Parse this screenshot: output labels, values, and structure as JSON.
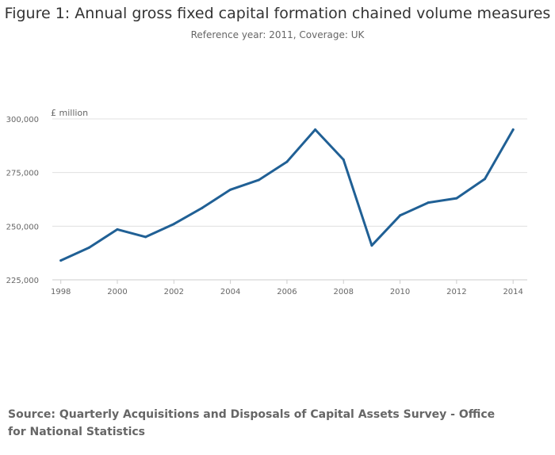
{
  "chart_data": {
    "type": "line",
    "title": "Figure 1: Annual gross fixed capital formation chained volume measures",
    "subtitle": "Reference year: 2011, Coverage: UK",
    "unit_label": "£ million",
    "xlabel": "",
    "ylabel": "£ million",
    "ylim": [
      225000,
      300000
    ],
    "xlim": [
      1997.7,
      2014.5
    ],
    "y_ticks": [
      225000,
      250000,
      275000,
      300000
    ],
    "y_tick_labels": [
      "225,000",
      "250,000",
      "275,000",
      "300,000"
    ],
    "x_ticks": [
      1998,
      2000,
      2002,
      2004,
      2006,
      2008,
      2010,
      2012,
      2014
    ],
    "x_tick_labels": [
      "1998",
      "2000",
      "2002",
      "2004",
      "2006",
      "2008",
      "2010",
      "2012",
      "2014"
    ],
    "grid": true,
    "series": [
      {
        "name": "Gross fixed capital formation",
        "color": "#206095",
        "x": [
          1998,
          1999,
          2000,
          2001,
          2002,
          2003,
          2004,
          2005,
          2006,
          2007,
          2008,
          2009,
          2010,
          2011,
          2012,
          2013,
          2014
        ],
        "values": [
          234000,
          240000,
          248500,
          245000,
          251000,
          258500,
          267000,
          271500,
          280000,
          295000,
          281000,
          241000,
          255000,
          261000,
          263000,
          272000,
          295000
        ]
      }
    ],
    "source": "Source: Quarterly Acquisitions and Disposals of Capital Assets Survey - Office for National Statistics"
  }
}
